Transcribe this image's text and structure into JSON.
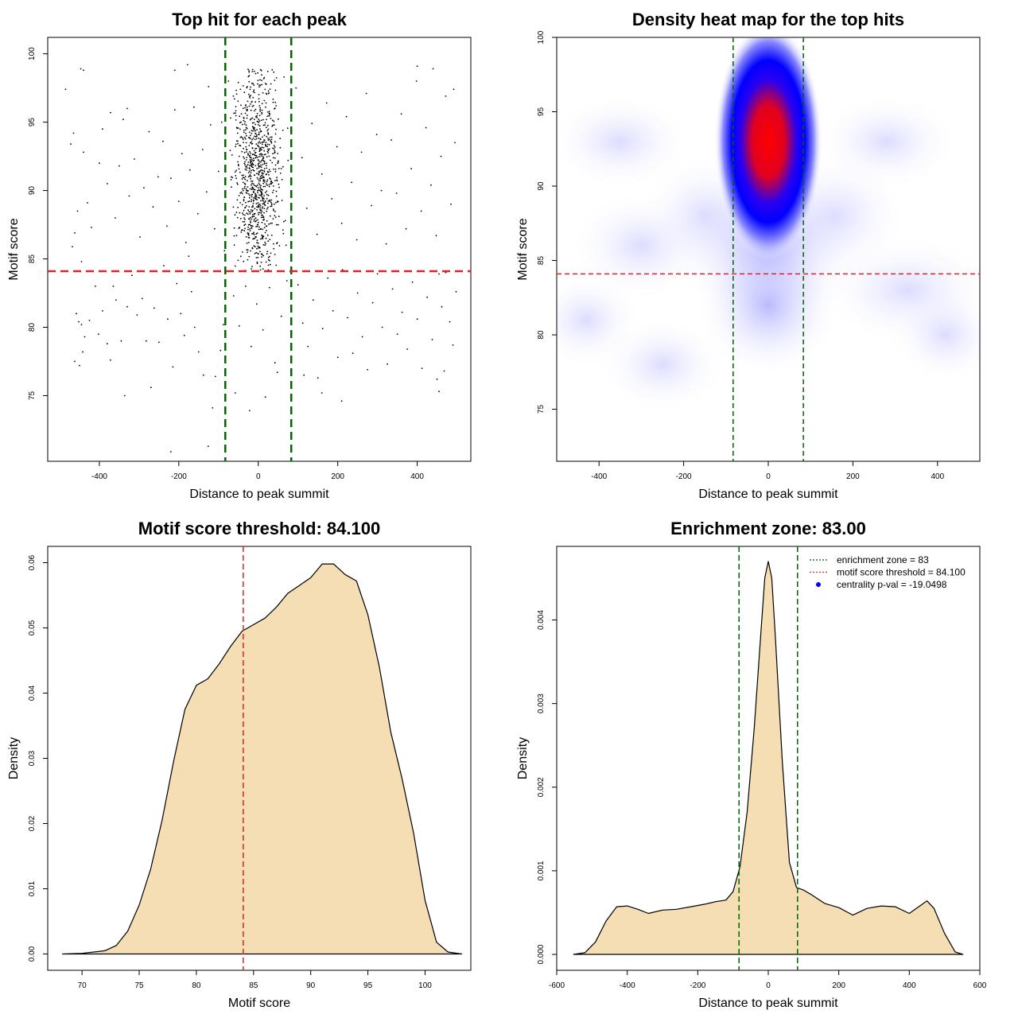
{
  "chart_data": [
    {
      "id": "scatter",
      "type": "scatter",
      "title": "Top hit for each peak",
      "xlabel": "Distance to peak summit",
      "ylabel": "Motif score",
      "xlim": [
        -530,
        535
      ],
      "ylim": [
        70.2,
        101.2
      ],
      "xticks": [
        -400,
        -200,
        0,
        200,
        400
      ],
      "xtick_labels": [
        "-400",
        "-200",
        "0",
        "200",
        "400"
      ],
      "yticks": [
        75,
        80,
        85,
        90,
        95,
        100
      ],
      "ytick_labels": [
        "75",
        "80",
        "85",
        "90",
        "95",
        "100"
      ],
      "vlines": [
        -83,
        83
      ],
      "hline": 84.1,
      "hline_color": "#d62728",
      "vline_color": "#006400",
      "point_color": "#000000",
      "points": [
        [
          -485,
          97.4
        ],
        [
          -447,
          98.9
        ],
        [
          -440,
          98.8
        ],
        [
          -465,
          94.2
        ],
        [
          -472,
          93.4
        ],
        [
          -440,
          92.8
        ],
        [
          -455,
          88.5
        ],
        [
          -462,
          86.9
        ],
        [
          -420,
          87.3
        ],
        [
          -430,
          89.1
        ],
        [
          -445,
          84.8
        ],
        [
          -468,
          85.9
        ],
        [
          -458,
          81.0
        ],
        [
          -452,
          80.4
        ],
        [
          -445,
          80.2
        ],
        [
          -437,
          79.3
        ],
        [
          -442,
          78.2
        ],
        [
          -450,
          77.2
        ],
        [
          -462,
          77.5
        ],
        [
          -425,
          80.5
        ],
        [
          -410,
          83.0
        ],
        [
          -402,
          79.5
        ],
        [
          -392,
          81.2
        ],
        [
          -380,
          78.8
        ],
        [
          -372,
          77.6
        ],
        [
          -365,
          83.0
        ],
        [
          -358,
          82.0
        ],
        [
          -345,
          79.0
        ],
        [
          -336,
          75.0
        ],
        [
          -330,
          81.5
        ],
        [
          -318,
          83.8
        ],
        [
          -305,
          80.9
        ],
        [
          -292,
          82.1
        ],
        [
          -282,
          79.0
        ],
        [
          -270,
          75.6
        ],
        [
          -262,
          81.4
        ],
        [
          -250,
          78.9
        ],
        [
          -238,
          84.5
        ],
        [
          -228,
          80.6
        ],
        [
          -215,
          77.1
        ],
        [
          -205,
          83.2
        ],
        [
          -195,
          81.0
        ],
        [
          -186,
          79.4
        ],
        [
          -175,
          85.2
        ],
        [
          -168,
          82.6
        ],
        [
          -160,
          80.0
        ],
        [
          -150,
          78.2
        ],
        [
          -138,
          76.5
        ],
        [
          -126,
          71.3
        ],
        [
          -115,
          74.1
        ],
        [
          -108,
          76.4
        ],
        [
          -95,
          78.3
        ],
        [
          -88,
          80.2
        ],
        [
          -400,
          92.0
        ],
        [
          -392,
          94.5
        ],
        [
          -380,
          90.5
        ],
        [
          -372,
          95.7
        ],
        [
          -360,
          88.0
        ],
        [
          -350,
          91.8
        ],
        [
          -340,
          95.2
        ],
        [
          -325,
          89.6
        ],
        [
          -312,
          92.3
        ],
        [
          -298,
          86.6
        ],
        [
          -288,
          90.2
        ],
        [
          -275,
          94.3
        ],
        [
          -265,
          88.8
        ],
        [
          -252,
          91.0
        ],
        [
          -240,
          93.6
        ],
        [
          -230,
          87.4
        ],
        [
          -220,
          90.9
        ],
        [
          -210,
          95.9
        ],
        [
          -200,
          89.2
        ],
        [
          -192,
          92.7
        ],
        [
          -182,
          86.2
        ],
        [
          -172,
          91.5
        ],
        [
          -162,
          96.1
        ],
        [
          -152,
          88.3
        ],
        [
          -140,
          93.0
        ],
        [
          -130,
          89.9
        ],
        [
          -120,
          94.8
        ],
        [
          -110,
          87.2
        ],
        [
          -100,
          91.4
        ],
        [
          -92,
          95.0
        ],
        [
          -85,
          85.6
        ],
        [
          -210,
          98.8
        ],
        [
          -178,
          99.2
        ],
        [
          -125,
          97.6
        ],
        [
          -330,
          96.0
        ],
        [
          -220,
          70.9
        ],
        [
          -75,
          98.0
        ],
        [
          -70,
          95.3
        ],
        [
          -66,
          92.6
        ],
        [
          -60,
          96.7
        ],
        [
          -55,
          88.4
        ],
        [
          -50,
          91.9
        ],
        [
          -45,
          97.4
        ],
        [
          -40,
          85.5
        ],
        [
          -35,
          89.5
        ],
        [
          -30,
          94.0
        ],
        [
          -25,
          86.8
        ],
        [
          -20,
          92.1
        ],
        [
          -15,
          98.7
        ],
        [
          -10,
          87.9
        ],
        [
          -5,
          93.4
        ],
        [
          0,
          90.2
        ],
        [
          5,
          95.8
        ],
        [
          10,
          88.7
        ],
        [
          15,
          92.9
        ],
        [
          20,
          97.1
        ],
        [
          25,
          86.3
        ],
        [
          30,
          91.4
        ],
        [
          35,
          94.7
        ],
        [
          40,
          89.0
        ],
        [
          45,
          96.2
        ],
        [
          50,
          87.5
        ],
        [
          55,
          93.8
        ],
        [
          60,
          90.8
        ],
        [
          65,
          98.3
        ],
        [
          70,
          86.0
        ],
        [
          75,
          92.2
        ],
        [
          -62,
          82.3
        ],
        [
          -48,
          80.1
        ],
        [
          -32,
          83.0
        ],
        [
          -18,
          78.6
        ],
        [
          -4,
          81.7
        ],
        [
          12,
          79.8
        ],
        [
          28,
          82.9
        ],
        [
          42,
          77.4
        ],
        [
          58,
          80.8
        ],
        [
          72,
          83.4
        ],
        [
          -22,
          73.9
        ],
        [
          18,
          74.9
        ],
        [
          -58,
          75.2
        ],
        [
          48,
          76.7
        ],
        [
          -68,
          91.0
        ],
        [
          -52,
          94.2
        ],
        [
          -38,
          90.0
        ],
        [
          -28,
          95.5
        ],
        [
          -12,
          89.3
        ],
        [
          2,
          96.5
        ],
        [
          8,
          91.7
        ],
        [
          22,
          89.7
        ],
        [
          32,
          97.8
        ],
        [
          38,
          92.4
        ],
        [
          52,
          88.1
        ],
        [
          62,
          94.4
        ],
        [
          -42,
          87.1
        ],
        [
          -8,
          85.9
        ],
        [
          26,
          85.1
        ],
        [
          68,
          87.8
        ],
        [
          95,
          97.5
        ],
        [
          110,
          92.4
        ],
        [
          122,
          88.7
        ],
        [
          135,
          94.9
        ],
        [
          148,
          86.8
        ],
        [
          160,
          91.2
        ],
        [
          172,
          96.4
        ],
        [
          185,
          89.4
        ],
        [
          198,
          93.2
        ],
        [
          210,
          87.6
        ],
        [
          222,
          95.4
        ],
        [
          235,
          90.6
        ],
        [
          248,
          86.4
        ],
        [
          260,
          92.8
        ],
        [
          272,
          97.1
        ],
        [
          285,
          88.9
        ],
        [
          298,
          94.1
        ],
        [
          310,
          90.0
        ],
        [
          322,
          86.1
        ],
        [
          335,
          93.7
        ],
        [
          348,
          89.8
        ],
        [
          360,
          95.6
        ],
        [
          372,
          87.2
        ],
        [
          385,
          91.6
        ],
        [
          398,
          98.0
        ],
        [
          410,
          88.5
        ],
        [
          422,
          94.6
        ],
        [
          435,
          90.4
        ],
        [
          448,
          86.7
        ],
        [
          460,
          92.5
        ],
        [
          472,
          96.9
        ],
        [
          485,
          89.0
        ],
        [
          495,
          93.5
        ],
        [
          492,
          97.4
        ],
        [
          440,
          98.9
        ],
        [
          400,
          99.1
        ],
        [
          100,
          83.1
        ],
        [
          112,
          80.3
        ],
        [
          125,
          78.6
        ],
        [
          138,
          82.0
        ],
        [
          150,
          76.3
        ],
        [
          162,
          79.9
        ],
        [
          175,
          83.6
        ],
        [
          188,
          81.2
        ],
        [
          200,
          77.8
        ],
        [
          212,
          84.2
        ],
        [
          225,
          80.7
        ],
        [
          238,
          78.1
        ],
        [
          250,
          82.5
        ],
        [
          262,
          79.3
        ],
        [
          275,
          76.9
        ],
        [
          288,
          81.8
        ],
        [
          300,
          83.9
        ],
        [
          312,
          80.0
        ],
        [
          325,
          77.3
        ],
        [
          338,
          82.8
        ],
        [
          350,
          79.5
        ],
        [
          362,
          81.1
        ],
        [
          375,
          78.4
        ],
        [
          388,
          83.3
        ],
        [
          400,
          80.6
        ],
        [
          412,
          77.0
        ],
        [
          425,
          82.2
        ],
        [
          438,
          79.1
        ],
        [
          450,
          76.2
        ],
        [
          462,
          81.5
        ],
        [
          472,
          84.0
        ],
        [
          482,
          80.4
        ],
        [
          490,
          78.7
        ],
        [
          498,
          82.6
        ],
        [
          468,
          76.8
        ],
        [
          455,
          75.3
        ],
        [
          455,
          83.9
        ],
        [
          210,
          74.6
        ],
        [
          160,
          75.2
        ],
        [
          115,
          76.5
        ]
      ]
    },
    {
      "id": "heatmap",
      "type": "heatmap",
      "title": "Density heat map for the top hits",
      "xlabel": "Distance to peak summit",
      "ylabel": "Motif score",
      "xlim": [
        -500,
        500
      ],
      "ylim": [
        71.5,
        100
      ],
      "xticks": [
        -400,
        -200,
        0,
        200,
        400
      ],
      "xtick_labels": [
        "-400",
        "-200",
        "0",
        "200",
        "400"
      ],
      "yticks": [
        75,
        80,
        85,
        90,
        95,
        100
      ],
      "ytick_labels": [
        "75",
        "80",
        "85",
        "90",
        "95",
        "100"
      ],
      "vlines": [
        -83,
        83
      ],
      "hline": 84.1,
      "color_scale": [
        "#ffffff",
        "#0000ff",
        "#ff0000"
      ],
      "peak": {
        "x": 0,
        "y": 93
      }
    },
    {
      "id": "score_density",
      "type": "area",
      "title": "Motif score threshold: 84.100",
      "xlabel": "Motif score",
      "ylabel": "Density",
      "xlim": [
        67,
        104
      ],
      "ylim": [
        -0.0025,
        0.0625
      ],
      "xticks": [
        70,
        75,
        80,
        85,
        90,
        95,
        100
      ],
      "xtick_labels": [
        "70",
        "75",
        "80",
        "85",
        "90",
        "95",
        "100"
      ],
      "yticks": [
        0,
        0.01,
        0.02,
        0.03,
        0.04,
        0.05,
        0.06
      ],
      "ytick_labels": [
        "0.00",
        "0.01",
        "0.02",
        "0.03",
        "0.04",
        "0.05",
        "0.06"
      ],
      "vline": 84.1,
      "fill": "#f5deb3",
      "x": [
        68.3,
        70,
        72,
        73,
        74,
        75,
        76,
        77,
        78,
        79,
        80,
        81,
        82,
        83,
        84,
        85,
        86,
        87,
        88,
        89,
        90,
        91,
        92,
        93,
        94,
        95,
        96,
        97,
        98,
        99,
        100,
        101,
        102,
        103.2
      ],
      "y": [
        0.0,
        0.0001,
        0.0005,
        0.0013,
        0.0035,
        0.0075,
        0.013,
        0.0205,
        0.0295,
        0.0375,
        0.0412,
        0.0422,
        0.0445,
        0.0472,
        0.0495,
        0.0505,
        0.0515,
        0.0532,
        0.0553,
        0.0565,
        0.0577,
        0.0598,
        0.0598,
        0.0582,
        0.0572,
        0.052,
        0.044,
        0.034,
        0.0268,
        0.0185,
        0.0082,
        0.0018,
        0.0003,
        0.0
      ]
    },
    {
      "id": "dist_density",
      "type": "area",
      "title": "Enrichment zone: 83.00",
      "xlabel": "Distance to peak summit",
      "ylabel": "Density",
      "xlim": [
        -600,
        600
      ],
      "ylim": [
        -0.00019,
        0.00488
      ],
      "xticks": [
        -600,
        -400,
        -200,
        0,
        200,
        400,
        600
      ],
      "xtick_labels": [
        "-600",
        "-400",
        "-200",
        "0",
        "200",
        "400",
        "600"
      ],
      "yticks": [
        0,
        0.001,
        0.002,
        0.003,
        0.004
      ],
      "ytick_labels": [
        "0.000",
        "0.001",
        "0.002",
        "0.003",
        "0.004"
      ],
      "vlines": [
        -83,
        83
      ],
      "fill": "#f5deb3",
      "x": [
        -552,
        -520,
        -490,
        -460,
        -430,
        -400,
        -370,
        -340,
        -300,
        -260,
        -220,
        -180,
        -150,
        -120,
        -100,
        -80,
        -60,
        -40,
        -20,
        -10,
        0,
        10,
        20,
        40,
        60,
        80,
        100,
        120,
        160,
        200,
        240,
        280,
        320,
        360,
        400,
        430,
        450,
        470,
        500,
        530,
        552
      ],
      "y": [
        0.0,
        2e-05,
        0.00015,
        0.0004,
        0.00057,
        0.00058,
        0.00054,
        0.00049,
        0.00053,
        0.00054,
        0.00057,
        0.0006,
        0.00063,
        0.00065,
        0.00075,
        0.00105,
        0.0017,
        0.0027,
        0.0039,
        0.0045,
        0.0047,
        0.0045,
        0.0038,
        0.0023,
        0.0011,
        0.0008,
        0.00077,
        0.00072,
        0.00061,
        0.00056,
        0.00047,
        0.00055,
        0.00058,
        0.00057,
        0.00049,
        0.00058,
        0.00064,
        0.00055,
        0.00025,
        3e-05,
        0.0
      ],
      "legend": {
        "position": "top-right",
        "items": [
          {
            "label": "enrichment zone = 83",
            "color": "#006400",
            "kind": "dotted-line"
          },
          {
            "label": "motif score threshold = 84.100",
            "color": "#d62728",
            "kind": "dotted-line"
          },
          {
            "label": "centrality p-val = -19.0498",
            "color": "#0000ff",
            "kind": "point"
          }
        ]
      }
    }
  ]
}
